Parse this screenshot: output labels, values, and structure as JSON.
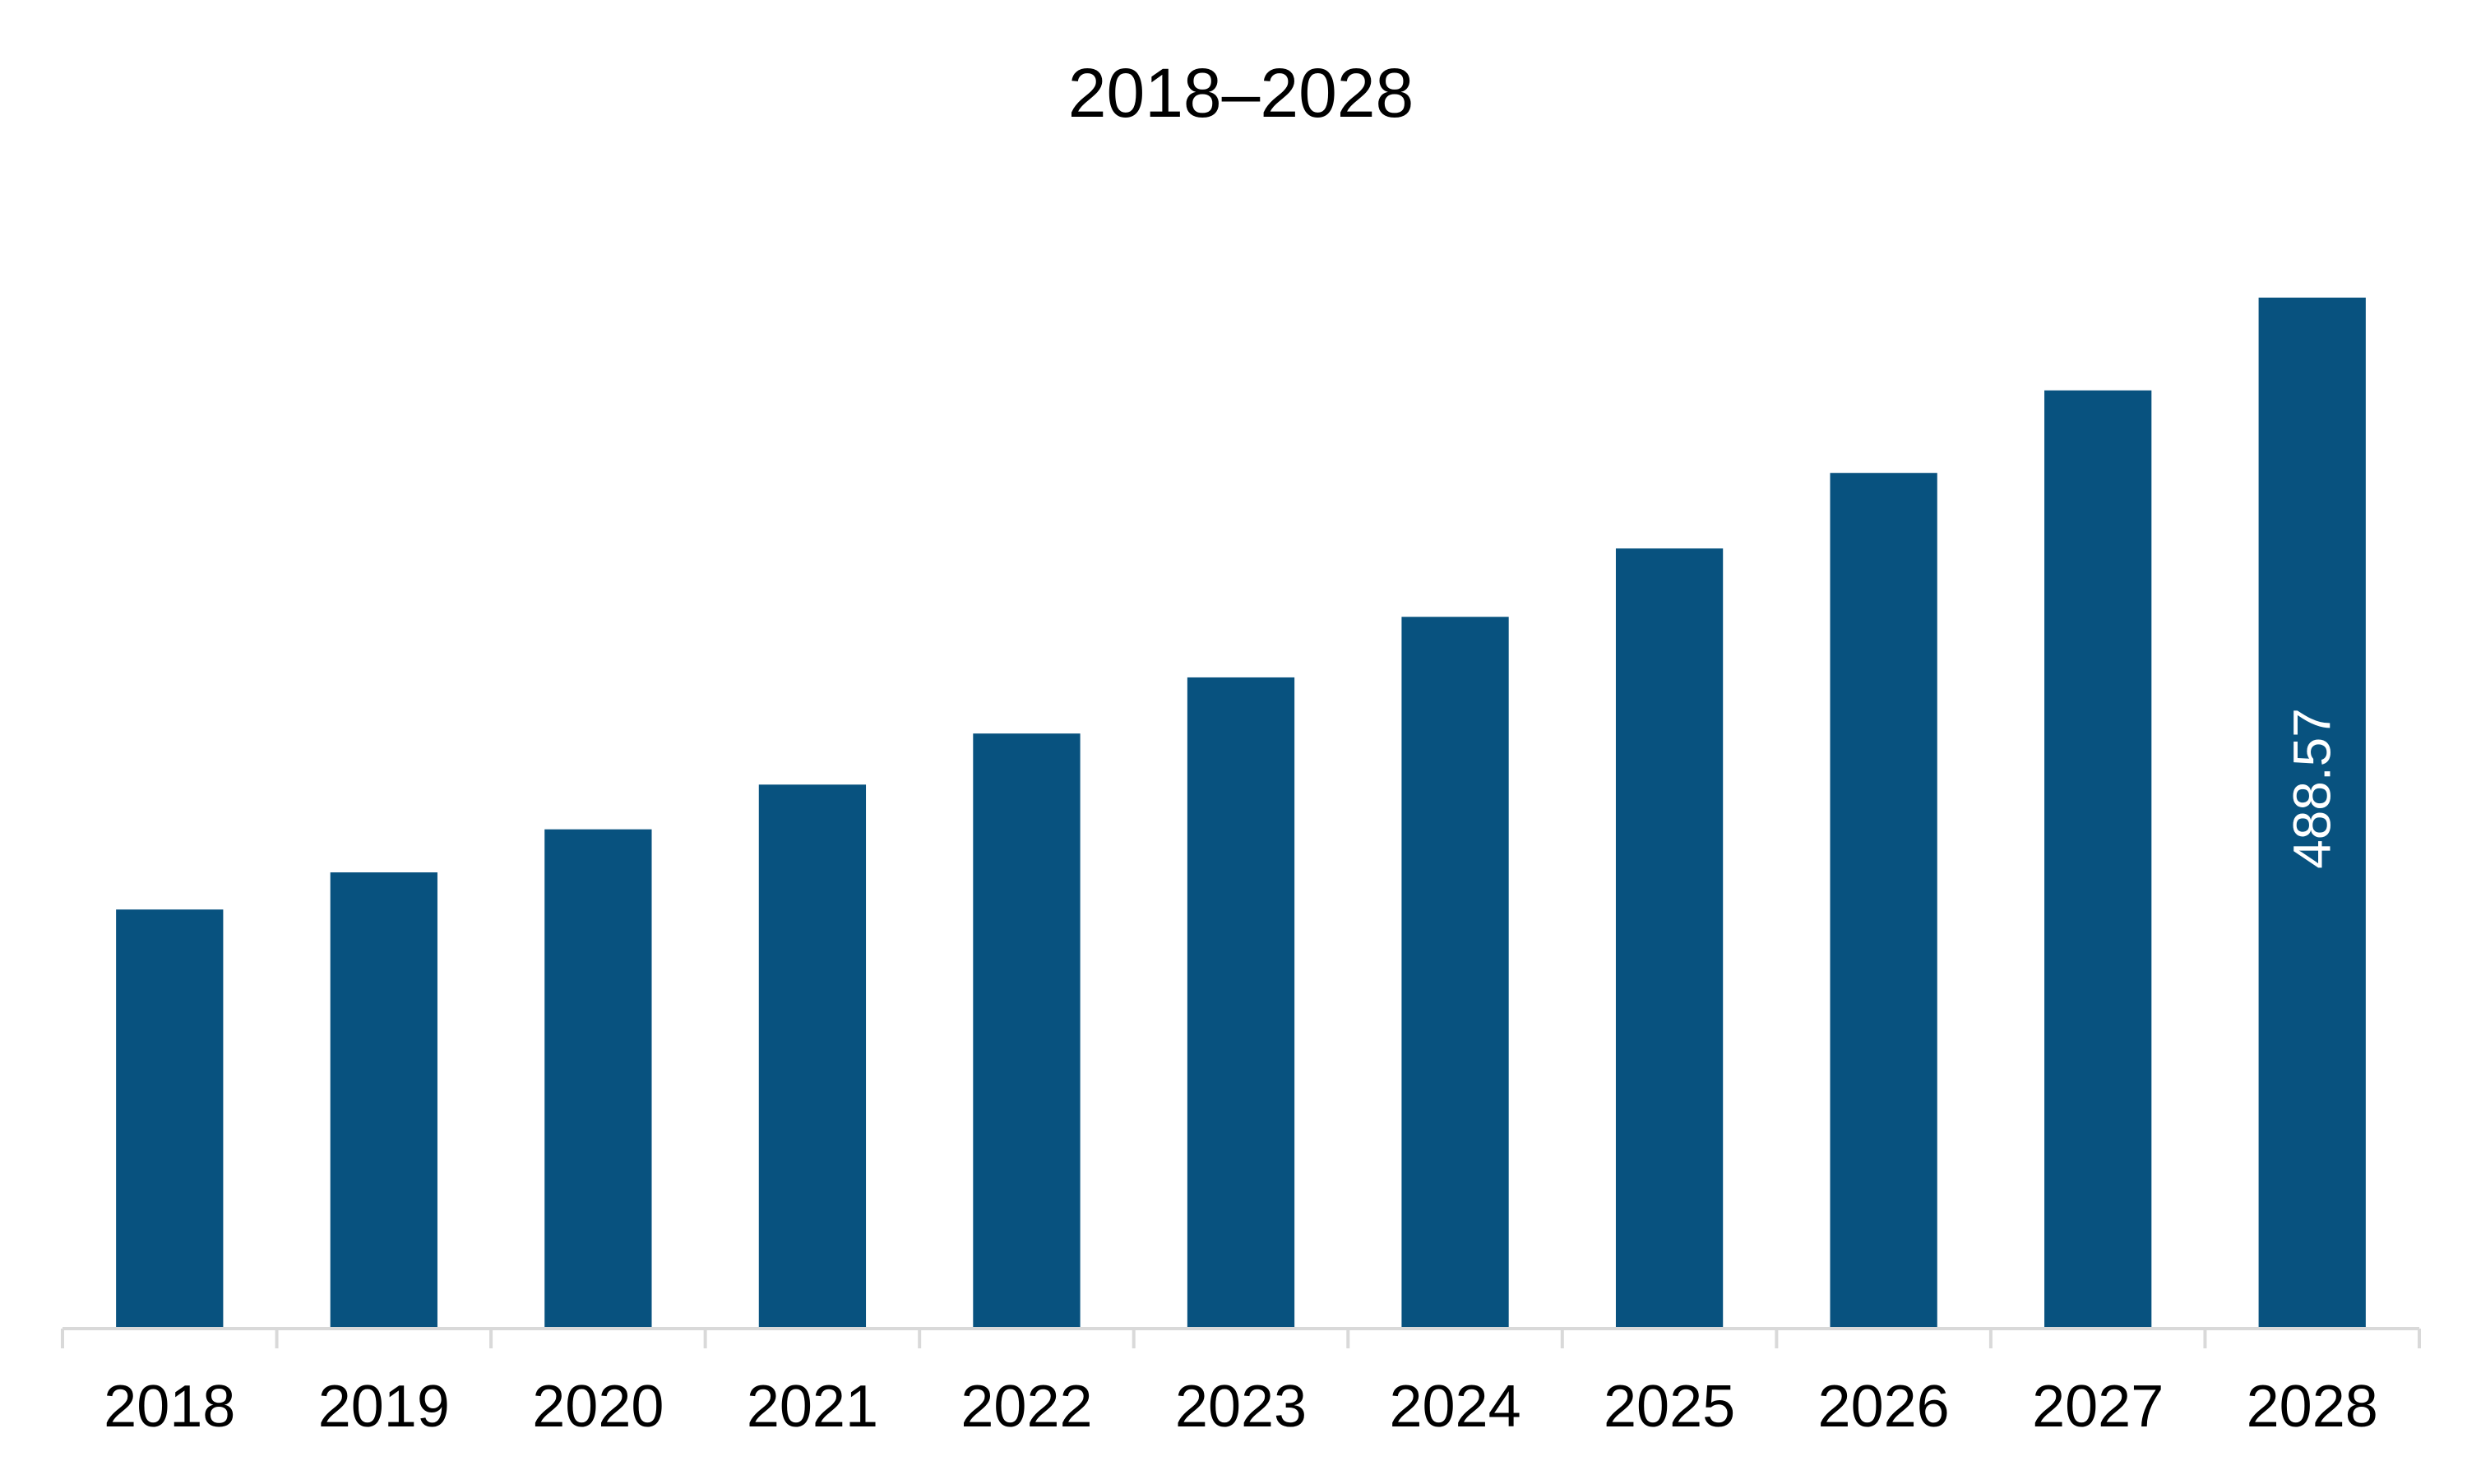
{
  "chart_data": {
    "type": "bar",
    "title": "2018–2028",
    "xlabel": "",
    "ylabel": "",
    "categories": [
      "2018",
      "2019",
      "2020",
      "2021",
      "2022",
      "2023",
      "2024",
      "2025",
      "2026",
      "2027",
      "2028"
    ],
    "values": [
      198.6,
      216.2,
      236.6,
      257.8,
      282.0,
      308.6,
      337.3,
      369.7,
      405.5,
      444.6,
      488.57
    ],
    "data_labels": [
      "",
      "",
      "",
      "",
      "",
      "",
      "",
      "",
      "",
      "",
      "488.57"
    ],
    "ylim": [
      0,
      540
    ],
    "grid": false,
    "legend": "none",
    "bar_color": "#08527f",
    "axis_color": "#d9d9d9",
    "label_color": "#ffffff"
  }
}
